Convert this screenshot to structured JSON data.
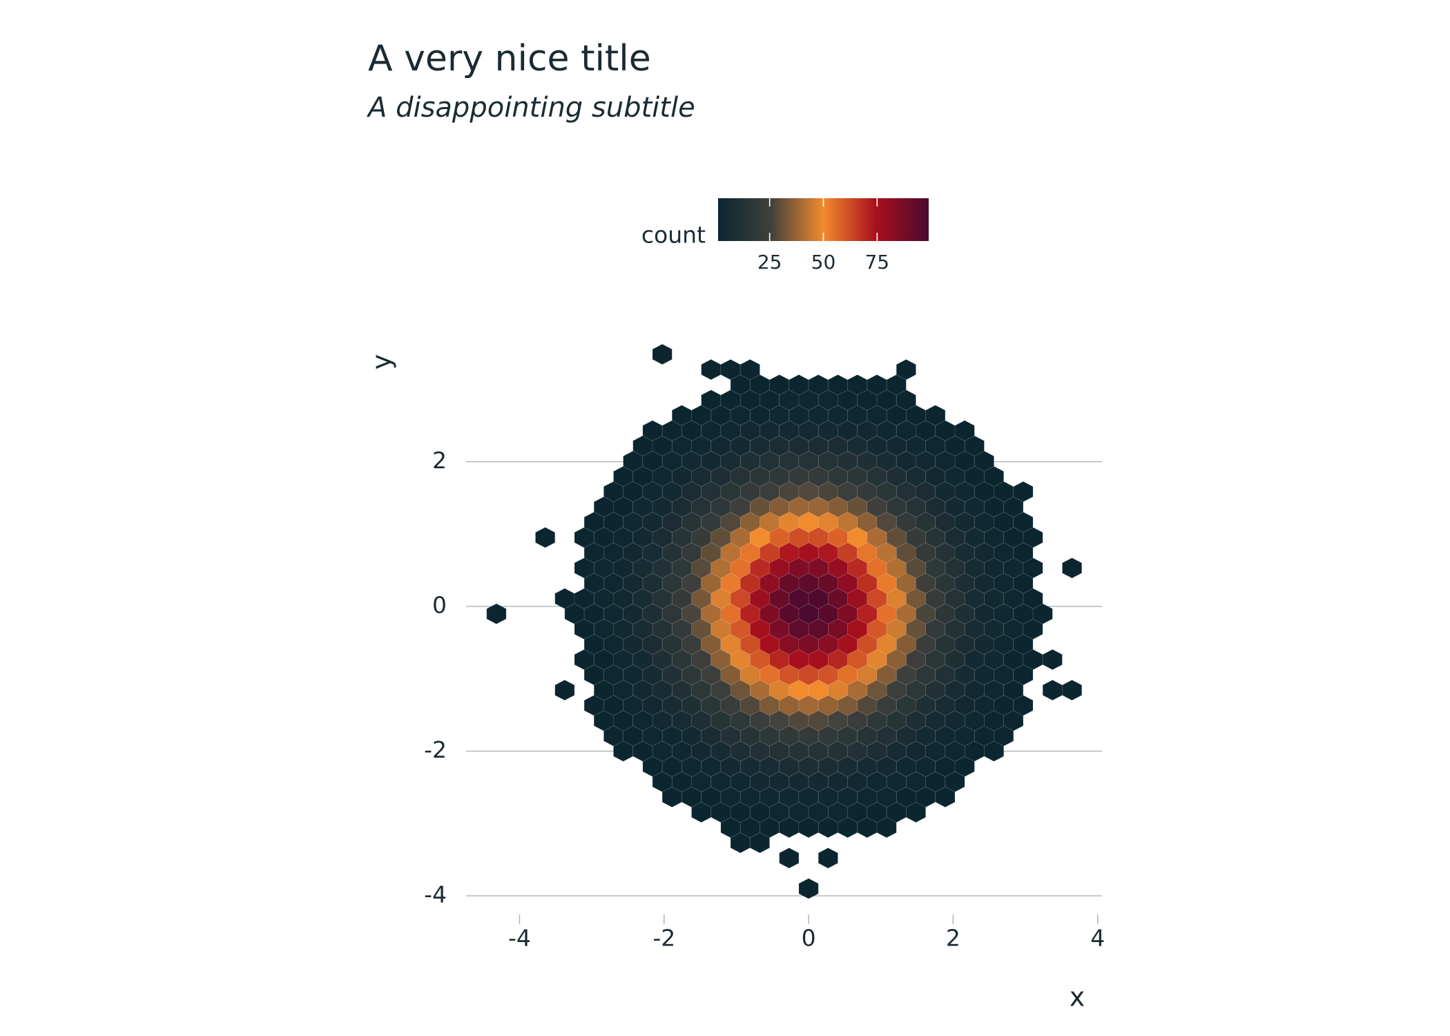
{
  "chart_data": {
    "type": "hexbin",
    "title": "A very nice title",
    "subtitle": "A disappointing subtitle",
    "x_label": "x",
    "y_label": "y",
    "xlim": [
      -4.74,
      4.06
    ],
    "ylim": [
      -4.2,
      3.8
    ],
    "xticks": [
      -4,
      -2,
      0,
      2,
      4
    ],
    "yticks": [
      -4,
      -2,
      0,
      2
    ],
    "grid": "y",
    "binwidth": [
      0.27,
      0.211
    ],
    "legend": {
      "title": "count",
      "position": "top",
      "ticks": [
        25,
        50,
        75
      ]
    },
    "colorscale": {
      "limits": [
        1,
        99
      ],
      "colors": [
        "#0c2630",
        "#3f403c",
        "#f28a2e",
        "#a8101e",
        "#4b0a2f"
      ]
    },
    "rows": [
      {
        "y": -3.9,
        "x": 0,
        "counts": [
          1
        ]
      },
      {
        "y": -3.478,
        "x": -0.27,
        "counts": [
          1,
          null,
          1
        ]
      },
      {
        "y": -3.267,
        "x": -0.945,
        "counts": [
          1,
          1
        ]
      },
      {
        "y": -3.056,
        "x": -1.08,
        "counts": [
          1,
          1,
          1,
          1,
          1,
          1,
          1,
          1,
          1
        ]
      },
      {
        "y": -2.845,
        "x": -1.485,
        "counts": [
          1,
          1,
          1,
          1,
          2,
          2,
          2,
          2,
          1,
          1,
          1,
          1
        ]
      },
      {
        "y": -2.634,
        "x": -1.89,
        "counts": [
          1,
          1,
          1,
          2,
          2,
          3,
          3,
          3,
          3,
          3,
          2,
          2,
          1,
          1,
          1
        ]
      },
      {
        "y": -2.423,
        "x": -2.025,
        "counts": [
          1,
          1,
          2,
          3,
          3,
          4,
          5,
          5,
          5,
          5,
          4,
          3,
          3,
          2,
          1,
          1
        ]
      },
      {
        "y": -2.212,
        "x": -2.16,
        "counts": [
          1,
          1,
          2,
          3,
          5,
          6,
          7,
          8,
          9,
          8,
          7,
          6,
          5,
          3,
          2,
          1,
          1
        ]
      },
      {
        "y": -2.001,
        "x": -2.565,
        "counts": [
          1,
          1,
          2,
          3,
          4,
          6,
          9,
          11,
          12,
          13,
          13,
          12,
          11,
          9,
          6,
          4,
          3,
          2,
          1,
          1
        ]
      },
      {
        "y": -1.79,
        "x": -2.7,
        "counts": [
          1,
          1,
          2,
          3,
          5,
          8,
          11,
          14,
          17,
          19,
          20,
          19,
          17,
          14,
          11,
          8,
          5,
          3,
          2,
          1,
          1
        ]
      },
      {
        "y": -1.579,
        "x": -2.835,
        "counts": [
          1,
          1,
          2,
          4,
          6,
          9,
          14,
          18,
          23,
          26,
          28,
          28,
          26,
          23,
          18,
          14,
          9,
          6,
          4,
          2,
          1,
          1
        ]
      },
      {
        "y": -1.368,
        "x": -2.97,
        "counts": [
          1,
          1,
          2,
          4,
          7,
          10,
          16,
          22,
          28,
          34,
          37,
          39,
          37,
          34,
          28,
          22,
          16,
          10,
          7,
          4,
          2,
          1,
          1
        ]
      },
      {
        "y": -1.157,
        "x": -3.375,
        "counts": [
          1,
          null,
          1,
          2,
          4,
          7,
          11,
          17,
          24,
          32,
          40,
          47,
          50,
          50,
          47,
          40,
          32,
          24,
          17,
          11,
          7,
          4,
          2,
          1,
          null,
          1,
          1
        ]
      },
      {
        "y": -0.946,
        "x": -2.97,
        "counts": [
          1,
          2,
          3,
          6,
          11,
          17,
          25,
          35,
          46,
          55,
          61,
          63,
          61,
          55,
          46,
          35,
          25,
          17,
          11,
          6,
          3,
          2,
          1
        ]
      },
      {
        "y": -0.735,
        "x": -3.105,
        "counts": [
          1,
          1,
          3,
          5,
          10,
          16,
          25,
          36,
          48,
          60,
          70,
          75,
          75,
          70,
          60,
          48,
          36,
          25,
          16,
          10,
          5,
          3,
          1,
          1,
          1
        ]
      },
      {
        "y": -0.524,
        "x": -2.97,
        "counts": [
          1,
          2,
          5,
          8,
          14,
          23,
          35,
          48,
          62,
          75,
          83,
          86,
          83,
          75,
          62,
          48,
          35,
          23,
          14,
          8,
          5,
          2,
          1
        ]
      },
      {
        "y": -0.313,
        "x": -3.105,
        "counts": [
          1,
          2,
          4,
          7,
          12,
          20,
          31,
          45,
          60,
          75,
          87,
          94,
          94,
          87,
          75,
          60,
          45,
          31,
          20,
          12,
          7,
          4,
          2,
          1
        ]
      },
      {
        "y": -0.102,
        "x": -4.32,
        "counts": [
          1,
          null,
          null,
          null,
          1,
          1,
          3,
          5,
          10,
          17,
          27,
          40,
          55,
          71,
          85,
          95,
          99,
          95,
          85,
          71,
          55,
          40,
          27,
          17,
          10,
          5,
          3,
          1,
          1
        ]
      },
      {
        "y": 0.109,
        "x": -3.375,
        "counts": [
          1,
          1,
          2,
          4,
          7,
          13,
          21,
          33,
          47,
          63,
          78,
          91,
          98,
          98,
          91,
          78,
          63,
          47,
          33,
          21,
          13,
          7,
          4,
          2,
          1
        ]
      },
      {
        "y": 0.32,
        "x": -2.97,
        "counts": [
          1,
          2,
          5,
          9,
          16,
          25,
          38,
          53,
          68,
          81,
          91,
          94,
          91,
          81,
          68,
          53,
          38,
          25,
          16,
          9,
          5,
          2,
          1
        ]
      },
      {
        "y": 0.531,
        "x": -3.105,
        "counts": [
          1,
          2,
          3,
          6,
          11,
          18,
          29,
          41,
          55,
          69,
          79,
          85,
          85,
          79,
          69,
          55,
          41,
          29,
          18,
          11,
          6,
          3,
          2,
          1,
          null,
          1
        ]
      },
      {
        "y": 0.742,
        "x": -2.97,
        "counts": [
          1,
          2,
          4,
          7,
          13,
          20,
          30,
          42,
          54,
          65,
          73,
          75,
          73,
          65,
          54,
          42,
          30,
          20,
          13,
          7,
          4,
          2,
          1
        ]
      },
      {
        "y": 0.953,
        "x": -3.645,
        "counts": [
          1,
          null,
          1,
          1,
          2,
          5,
          8,
          14,
          21,
          30,
          40,
          50,
          58,
          62,
          62,
          58,
          50,
          40,
          30,
          21,
          14,
          8,
          5,
          2,
          1,
          1
        ]
      },
      {
        "y": 1.164,
        "x": -2.97,
        "counts": [
          1,
          1,
          3,
          5,
          8,
          14,
          20,
          28,
          36,
          43,
          48,
          50,
          48,
          43,
          36,
          28,
          20,
          14,
          8,
          5,
          3,
          1,
          1
        ]
      },
      {
        "y": 1.375,
        "x": -2.835,
        "counts": [
          1,
          1,
          3,
          5,
          8,
          13,
          18,
          25,
          31,
          35,
          38,
          38,
          35,
          31,
          25,
          18,
          13,
          8,
          5,
          3,
          1,
          1
        ]
      },
      {
        "y": 1.586,
        "x": -2.7,
        "counts": [
          1,
          1,
          3,
          5,
          8,
          11,
          16,
          20,
          24,
          27,
          28,
          27,
          24,
          20,
          16,
          11,
          8,
          5,
          3,
          1,
          1,
          1
        ]
      },
      {
        "y": 1.797,
        "x": -2.565,
        "counts": [
          1,
          1,
          3,
          4,
          7,
          9,
          13,
          16,
          18,
          20,
          20,
          18,
          16,
          13,
          9,
          7,
          4,
          3,
          1,
          1
        ]
      },
      {
        "y": 2.008,
        "x": -2.43,
        "counts": [
          1,
          1,
          2,
          4,
          5,
          7,
          10,
          11,
          13,
          13,
          13,
          11,
          10,
          7,
          5,
          4,
          2,
          1,
          1
        ]
      },
      {
        "y": 2.219,
        "x": -2.295,
        "counts": [
          1,
          1,
          2,
          3,
          4,
          5,
          7,
          8,
          8,
          8,
          8,
          7,
          5,
          4,
          3,
          2,
          1,
          1
        ]
      },
      {
        "y": 2.43,
        "x": -2.16,
        "counts": [
          1,
          1,
          1,
          2,
          3,
          4,
          4,
          5,
          5,
          5,
          4,
          4,
          3,
          2,
          1,
          1,
          1
        ]
      },
      {
        "y": 2.641,
        "x": -1.755,
        "counts": [
          1,
          1,
          1,
          2,
          2,
          3,
          3,
          3,
          3,
          2,
          2,
          1,
          1,
          1
        ]
      },
      {
        "y": 2.852,
        "x": -1.35,
        "counts": [
          1,
          1,
          1,
          1,
          2,
          2,
          2,
          1,
          1,
          1,
          1
        ]
      },
      {
        "y": 3.063,
        "x": -0.945,
        "counts": [
          1,
          1,
          1,
          1,
          1,
          1,
          1,
          1,
          1
        ]
      },
      {
        "y": 3.274,
        "x": -1.35,
        "counts": [
          1,
          1,
          1,
          null,
          null,
          null,
          null,
          null,
          null,
          null,
          1
        ]
      },
      {
        "y": 3.485,
        "x": -2.025,
        "counts": [
          1
        ]
      }
    ]
  }
}
